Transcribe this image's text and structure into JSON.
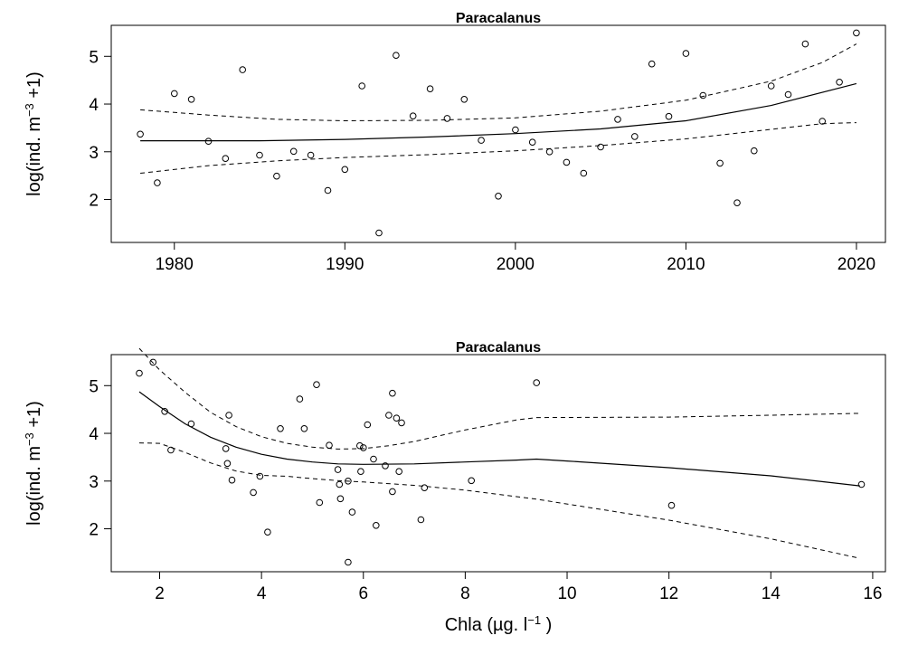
{
  "chart_data": [
    {
      "type": "scatter",
      "title": "Paracalanus",
      "xlabel": "",
      "ylabel": {
        "prefix": "log(ind. m",
        "superscript": "−3",
        "suffix": " +1)"
      },
      "xlim": [
        1976.3,
        2021.7
      ],
      "ylim": [
        1.1,
        5.65
      ],
      "xticks": [
        1980,
        1990,
        2000,
        2010,
        2020
      ],
      "yticks": [
        2,
        3,
        4,
        5
      ],
      "grid": false,
      "points": [
        [
          1978,
          3.37
        ],
        [
          1979,
          2.35
        ],
        [
          1980,
          4.22
        ],
        [
          1981,
          4.1
        ],
        [
          1982,
          3.22
        ],
        [
          1983,
          2.86
        ],
        [
          1984,
          4.72
        ],
        [
          1985,
          2.93
        ],
        [
          1986,
          2.49
        ],
        [
          1987,
          3.01
        ],
        [
          1988,
          2.93
        ],
        [
          1989,
          2.19
        ],
        [
          1990,
          2.63
        ],
        [
          1991,
          4.38
        ],
        [
          1992,
          1.3
        ],
        [
          1993,
          5.02
        ],
        [
          1994,
          3.75
        ],
        [
          1995,
          4.32
        ],
        [
          1996,
          3.7
        ],
        [
          1997,
          4.1
        ],
        [
          1998,
          3.24
        ],
        [
          1999,
          2.07
        ],
        [
          2000,
          3.46
        ],
        [
          2001,
          3.2
        ],
        [
          2002,
          3.0
        ],
        [
          2003,
          2.78
        ],
        [
          2004,
          2.55
        ],
        [
          2005,
          3.1
        ],
        [
          2006,
          3.68
        ],
        [
          2007,
          3.32
        ],
        [
          2008,
          4.84
        ],
        [
          2009,
          3.74
        ],
        [
          2010,
          5.06
        ],
        [
          2011,
          4.18
        ],
        [
          2012,
          2.76
        ],
        [
          2013,
          1.93
        ],
        [
          2014,
          3.02
        ],
        [
          2015,
          4.38
        ],
        [
          2016,
          4.2
        ],
        [
          2017,
          5.26
        ],
        [
          2018,
          3.64
        ],
        [
          2019,
          4.46
        ],
        [
          2020,
          5.49
        ]
      ],
      "fit": [
        [
          1978,
          3.23
        ],
        [
          1985,
          3.23
        ],
        [
          1990,
          3.26
        ],
        [
          1995,
          3.31
        ],
        [
          2000,
          3.38
        ],
        [
          2005,
          3.48
        ],
        [
          2010,
          3.65
        ],
        [
          2015,
          3.97
        ],
        [
          2020,
          4.43
        ]
      ],
      "ci_upper": [
        [
          1978,
          3.88
        ],
        [
          1982,
          3.77
        ],
        [
          1986,
          3.68
        ],
        [
          1990,
          3.65
        ],
        [
          1995,
          3.66
        ],
        [
          2000,
          3.71
        ],
        [
          2005,
          3.85
        ],
        [
          2010,
          4.08
        ],
        [
          2015,
          4.48
        ],
        [
          2018,
          4.87
        ],
        [
          2020,
          5.26
        ]
      ],
      "ci_lower": [
        [
          1978,
          2.55
        ],
        [
          1982,
          2.71
        ],
        [
          1986,
          2.81
        ],
        [
          1990,
          2.88
        ],
        [
          1995,
          2.94
        ],
        [
          2000,
          3.02
        ],
        [
          2005,
          3.13
        ],
        [
          2010,
          3.27
        ],
        [
          2015,
          3.47
        ],
        [
          2018,
          3.59
        ],
        [
          2020,
          3.61
        ]
      ]
    },
    {
      "type": "scatter",
      "title": "Paracalanus",
      "xlabel": {
        "prefix": "Chla (µg. l",
        "superscript": "−1",
        "suffix": " )"
      },
      "ylabel": {
        "prefix": "log(ind. m",
        "superscript": "−3",
        "suffix": " +1)"
      },
      "xlim": [
        1.05,
        16.25
      ],
      "ylim": [
        1.1,
        5.65
      ],
      "xticks": [
        2,
        4,
        6,
        8,
        10,
        12,
        14,
        16
      ],
      "yticks": [
        2,
        3,
        4,
        5
      ],
      "grid": false,
      "points": [
        [
          1.6,
          5.26
        ],
        [
          1.87,
          5.49
        ],
        [
          2.1,
          4.46
        ],
        [
          2.22,
          3.65
        ],
        [
          2.62,
          4.2
        ],
        [
          3.3,
          3.68
        ],
        [
          3.33,
          3.37
        ],
        [
          3.36,
          4.38
        ],
        [
          3.42,
          3.02
        ],
        [
          3.84,
          2.76
        ],
        [
          3.97,
          3.1
        ],
        [
          4.12,
          1.93
        ],
        [
          4.37,
          4.1
        ],
        [
          4.75,
          4.72
        ],
        [
          4.84,
          4.1
        ],
        [
          5.08,
          5.02
        ],
        [
          5.14,
          2.55
        ],
        [
          5.33,
          3.75
        ],
        [
          5.5,
          3.24
        ],
        [
          5.53,
          2.93
        ],
        [
          5.55,
          2.63
        ],
        [
          5.7,
          3.0
        ],
        [
          5.7,
          1.3
        ],
        [
          5.78,
          2.35
        ],
        [
          5.93,
          3.74
        ],
        [
          5.95,
          3.2
        ],
        [
          6.0,
          3.7
        ],
        [
          6.08,
          4.18
        ],
        [
          6.2,
          3.46
        ],
        [
          6.25,
          2.07
        ],
        [
          6.43,
          3.32
        ],
        [
          6.5,
          4.38
        ],
        [
          6.57,
          2.78
        ],
        [
          6.57,
          4.84
        ],
        [
          6.65,
          4.32
        ],
        [
          6.7,
          3.2
        ],
        [
          6.75,
          4.22
        ],
        [
          7.13,
          2.19
        ],
        [
          7.2,
          2.86
        ],
        [
          8.12,
          3.01
        ],
        [
          9.4,
          5.06
        ],
        [
          12.05,
          2.49
        ],
        [
          15.78,
          2.93
        ]
      ],
      "fit": [
        [
          1.6,
          4.87
        ],
        [
          2,
          4.56
        ],
        [
          2.5,
          4.2
        ],
        [
          3,
          3.92
        ],
        [
          3.5,
          3.71
        ],
        [
          4,
          3.56
        ],
        [
          4.5,
          3.46
        ],
        [
          5,
          3.4
        ],
        [
          5.5,
          3.36
        ],
        [
          6,
          3.35
        ],
        [
          7,
          3.36
        ],
        [
          8,
          3.4
        ],
        [
          9,
          3.44
        ],
        [
          9.4,
          3.46
        ],
        [
          10,
          3.42
        ],
        [
          12,
          3.28
        ],
        [
          14,
          3.11
        ],
        [
          15.75,
          2.9
        ]
      ],
      "ci_upper": [
        [
          1.6,
          5.78
        ],
        [
          2,
          5.33
        ],
        [
          2.5,
          4.86
        ],
        [
          3,
          4.44
        ],
        [
          3.5,
          4.14
        ],
        [
          4,
          3.93
        ],
        [
          4.5,
          3.79
        ],
        [
          5,
          3.71
        ],
        [
          5.5,
          3.67
        ],
        [
          6,
          3.68
        ],
        [
          6.5,
          3.74
        ],
        [
          7,
          3.83
        ],
        [
          8,
          4.07
        ],
        [
          9,
          4.28
        ],
        [
          9.4,
          4.33
        ],
        [
          12,
          4.34
        ],
        [
          14,
          4.38
        ],
        [
          15.75,
          4.42
        ]
      ],
      "ci_lower": [
        [
          1.6,
          3.8
        ],
        [
          2,
          3.79
        ],
        [
          2.5,
          3.6
        ],
        [
          3,
          3.38
        ],
        [
          3.5,
          3.21
        ],
        [
          4,
          3.12
        ],
        [
          4.5,
          3.1
        ],
        [
          5,
          3.05
        ],
        [
          5.5,
          3.01
        ],
        [
          6,
          2.98
        ],
        [
          7,
          2.91
        ],
        [
          8,
          2.81
        ],
        [
          9.4,
          2.62
        ],
        [
          12,
          2.18
        ],
        [
          14,
          1.79
        ],
        [
          15.75,
          1.38
        ]
      ]
    }
  ]
}
